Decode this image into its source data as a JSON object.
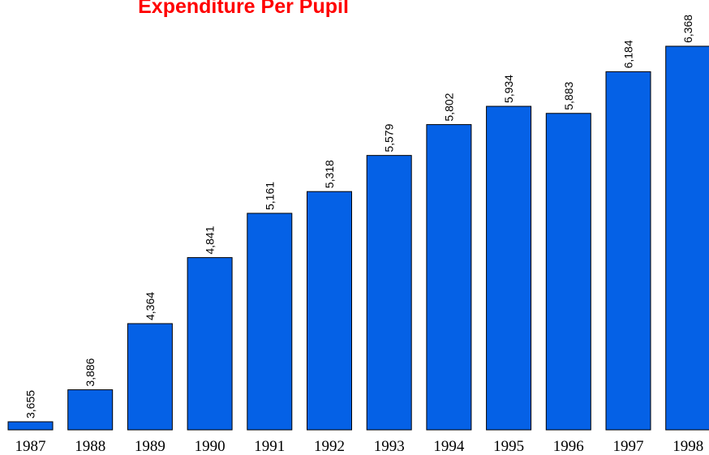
{
  "chart_data": {
    "type": "bar",
    "title": "Expenditure Per Pupil",
    "categories": [
      "1987",
      "1988",
      "1989",
      "1990",
      "1991",
      "1992",
      "1993",
      "1994",
      "1995",
      "1996",
      "1997",
      "1998"
    ],
    "values": [
      3655,
      3886,
      4364,
      4841,
      5161,
      5318,
      5579,
      5802,
      5934,
      5883,
      6184,
      6368
    ],
    "value_labels": [
      "3,655",
      "3,886",
      "4,364",
      "4,841",
      "5,161",
      "5,318",
      "5,579",
      "5,802",
      "5,934",
      "5,883",
      "6,184",
      "6,368"
    ],
    "color": "#0561e6"
  }
}
